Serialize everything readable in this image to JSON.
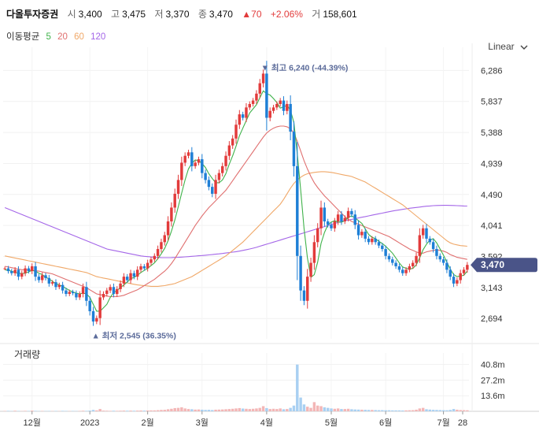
{
  "header": {
    "name": "다올투자증권",
    "open_label": "시",
    "open": "3,400",
    "high_label": "고",
    "high": "3,475",
    "low_label": "저",
    "low": "3,370",
    "close_label": "종",
    "close": "3,470",
    "change_arrow": "▲",
    "change": "70",
    "change_pct": "+2.06%",
    "volume_label": "거",
    "volume": "158,601"
  },
  "ma_legend": {
    "label": "이동평균",
    "p5": "5",
    "p20": "20",
    "p60": "60",
    "p120": "120"
  },
  "scale_button": {
    "label": "Linear",
    "icon": "chevron-down-icon"
  },
  "volume_title": "거래량",
  "colors": {
    "up": "#e23b3b",
    "down": "#1e7fd6",
    "ma5": "#3fb24a",
    "ma20": "#e07070",
    "ma60": "#f0a868",
    "ma120": "#a466e8",
    "price_tag": "#4a5488"
  },
  "chart_data": {
    "type": "candlestick",
    "price_axis": {
      "min": 2400,
      "max": 6450,
      "ticks": [
        2694,
        3143,
        3592,
        4041,
        4490,
        4939,
        5388,
        5837,
        6286
      ]
    },
    "volume_axis": {
      "ticks": [
        "13.6m",
        "27.2m",
        "40.8m"
      ]
    },
    "x_ticks": [
      "12월",
      "2023",
      "2월",
      "3월",
      "4월",
      "5월",
      "6월",
      "7월",
      "28"
    ],
    "last_price_label": "3,470",
    "high_annotation": "▼ 최고 6,240 (-44.39%)",
    "low_annotation": "▲ 최저 2,545 (36.35%)",
    "close_series": [
      3420,
      3380,
      3350,
      3400,
      3300,
      3350,
      3420,
      3380,
      3450,
      3300,
      3250,
      3320,
      3280,
      3200,
      3220,
      3150,
      3180,
      3100,
      3050,
      3080,
      3060,
      3000,
      3050,
      3150,
      2950,
      2800,
      2650,
      2700,
      3000,
      3050,
      3100,
      3150,
      3050,
      3120,
      3200,
      3300,
      3250,
      3350,
      3300,
      3400,
      3450,
      3420,
      3500,
      3550,
      3600,
      3700,
      3800,
      3900,
      4100,
      4300,
      4500,
      4700,
      4950,
      5050,
      5100,
      4900,
      4950,
      5000,
      4800,
      4700,
      4600,
      4500,
      4700,
      4800,
      4900,
      5050,
      5200,
      5300,
      5500,
      5650,
      5600,
      5750,
      5800,
      5850,
      5950,
      6100,
      6240,
      5600,
      5700,
      5750,
      5800,
      5850,
      5700,
      5800,
      5400,
      4900,
      3600,
      3100,
      2950,
      3300,
      3500,
      3800,
      4000,
      4300,
      4100,
      4050,
      4000,
      4100,
      4200,
      4100,
      4150,
      4250,
      4200,
      4050,
      3900,
      3950,
      3850,
      3800,
      3850,
      3800,
      3750,
      3700,
      3600,
      3550,
      3500,
      3450,
      3400,
      3350,
      3400,
      3450,
      3500,
      3600,
      3900,
      4000,
      3850,
      3800,
      3700,
      3600,
      3550,
      3500,
      3400,
      3300,
      3200,
      3250,
      3350,
      3400,
      3470
    ],
    "ma5": [
      3400,
      3390,
      3380,
      3360,
      3350,
      3345,
      3350,
      3370,
      3390,
      3380,
      3350,
      3330,
      3290,
      3270,
      3230,
      3200,
      3180,
      3160,
      3130,
      3100,
      3080,
      3060,
      3050,
      3060,
      3050,
      3000,
      2900,
      2800,
      2800,
      2850,
      2900,
      3000,
      3070,
      3100,
      3140,
      3180,
      3220,
      3270,
      3290,
      3320,
      3360,
      3390,
      3420,
      3460,
      3500,
      3560,
      3630,
      3710,
      3820,
      3960,
      4120,
      4310,
      4510,
      4700,
      4860,
      4940,
      4990,
      4980,
      4940,
      4880,
      4790,
      4720,
      4660,
      4660,
      4700,
      4790,
      4930,
      5050,
      5190,
      5340,
      5450,
      5560,
      5670,
      5730,
      5790,
      5890,
      5990,
      5950,
      5930,
      5880,
      5820,
      5740,
      5760,
      5780,
      5710,
      5530,
      5080,
      4560,
      4000,
      3570,
      3290,
      3330,
      3510,
      3780,
      3940,
      4050,
      4090,
      4110,
      4090,
      4090,
      4110,
      4160,
      4180,
      4150,
      4110,
      4070,
      3990,
      3910,
      3870,
      3850,
      3810,
      3780,
      3740,
      3690,
      3640,
      3570,
      3500,
      3440,
      3420,
      3410,
      3420,
      3470,
      3570,
      3690,
      3770,
      3830,
      3850,
      3790,
      3700,
      3610,
      3510,
      3410,
      3330,
      3300,
      3310,
      3320,
      3380
    ],
    "ma20": [
      3450,
      3440,
      3430,
      3420,
      3410,
      3400,
      3400,
      3395,
      3390,
      3385,
      3380,
      3370,
      3360,
      3350,
      3340,
      3320,
      3300,
      3280,
      3260,
      3240,
      3220,
      3200,
      3180,
      3160,
      3140,
      3110,
      3080,
      3050,
      3040,
      3030,
      3020,
      3010,
      3010,
      3010,
      3020,
      3030,
      3050,
      3070,
      3090,
      3110,
      3140,
      3170,
      3200,
      3230,
      3260,
      3300,
      3340,
      3380,
      3430,
      3490,
      3560,
      3640,
      3720,
      3800,
      3880,
      3960,
      4040,
      4110,
      4180,
      4240,
      4300,
      4350,
      4400,
      4450,
      4500,
      4550,
      4620,
      4690,
      4760,
      4830,
      4900,
      4970,
      5040,
      5110,
      5180,
      5250,
      5320,
      5380,
      5420,
      5450,
      5470,
      5480,
      5480,
      5470,
      5440,
      5380,
      5260,
      5120,
      4980,
      4860,
      4750,
      4660,
      4590,
      4530,
      4470,
      4420,
      4370,
      4320,
      4270,
      4220,
      4170,
      4130,
      4100,
      4080,
      4060,
      4040,
      4020,
      4000,
      3980,
      3960,
      3940,
      3920,
      3900,
      3880,
      3850,
      3820,
      3790,
      3760,
      3730,
      3700,
      3680,
      3660,
      3640,
      3640,
      3660,
      3670,
      3680,
      3690,
      3680,
      3670,
      3650,
      3620,
      3600,
      3580,
      3570,
      3560,
      3550
    ],
    "ma60": [
      3600,
      3590,
      3580,
      3570,
      3560,
      3550,
      3540,
      3530,
      3520,
      3510,
      3500,
      3490,
      3480,
      3470,
      3460,
      3450,
      3440,
      3430,
      3420,
      3410,
      3400,
      3390,
      3380,
      3370,
      3360,
      3340,
      3320,
      3300,
      3290,
      3280,
      3270,
      3260,
      3250,
      3240,
      3230,
      3220,
      3210,
      3200,
      3190,
      3180,
      3175,
      3170,
      3165,
      3160,
      3160,
      3160,
      3165,
      3170,
      3180,
      3190,
      3200,
      3220,
      3240,
      3260,
      3280,
      3300,
      3330,
      3360,
      3390,
      3420,
      3450,
      3480,
      3510,
      3540,
      3570,
      3600,
      3640,
      3680,
      3720,
      3760,
      3800,
      3850,
      3900,
      3950,
      4000,
      4050,
      4100,
      4150,
      4200,
      4250,
      4300,
      4350,
      4420,
      4500,
      4580,
      4650,
      4700,
      4740,
      4770,
      4790,
      4800,
      4810,
      4815,
      4820,
      4820,
      4815,
      4810,
      4800,
      4790,
      4780,
      4770,
      4760,
      4750,
      4730,
      4710,
      4690,
      4670,
      4640,
      4610,
      4580,
      4550,
      4520,
      4490,
      4460,
      4430,
      4400,
      4370,
      4340,
      4300,
      4260,
      4220,
      4180,
      4140,
      4100,
      4060,
      4020,
      3980,
      3940,
      3900,
      3860,
      3820,
      3790,
      3770,
      3760,
      3750,
      3745,
      3740
    ],
    "ma120": [
      4300,
      4280,
      4260,
      4240,
      4220,
      4200,
      4180,
      4160,
      4140,
      4120,
      4100,
      4080,
      4060,
      4040,
      4020,
      4000,
      3980,
      3960,
      3940,
      3920,
      3900,
      3880,
      3860,
      3840,
      3820,
      3800,
      3780,
      3760,
      3740,
      3720,
      3700,
      3690,
      3680,
      3670,
      3660,
      3650,
      3640,
      3630,
      3620,
      3610,
      3600,
      3595,
      3590,
      3585,
      3580,
      3578,
      3576,
      3575,
      3575,
      3576,
      3578,
      3580,
      3583,
      3586,
      3590,
      3594,
      3598,
      3602,
      3606,
      3610,
      3615,
      3620,
      3625,
      3630,
      3636,
      3642,
      3648,
      3655,
      3662,
      3670,
      3680,
      3690,
      3700,
      3712,
      3725,
      3740,
      3755,
      3770,
      3785,
      3800,
      3815,
      3830,
      3845,
      3860,
      3875,
      3890,
      3905,
      3920,
      3935,
      3950,
      3965,
      3980,
      3995,
      4010,
      4025,
      4040,
      4055,
      4070,
      4085,
      4100,
      4110,
      4120,
      4130,
      4140,
      4150,
      4160,
      4170,
      4180,
      4190,
      4200,
      4210,
      4220,
      4230,
      4240,
      4250,
      4258,
      4266,
      4274,
      4282,
      4290,
      4296,
      4302,
      4308,
      4314,
      4320,
      4324,
      4328,
      4330,
      4332,
      4333,
      4333,
      4332,
      4330,
      4328,
      4326,
      4324,
      4322
    ],
    "volume": [
      0.3,
      0.4,
      0.2,
      0.5,
      0.3,
      0.2,
      0.4,
      0.3,
      0.6,
      0.4,
      0.2,
      0.3,
      0.2,
      0.3,
      0.2,
      0.3,
      0.2,
      0.4,
      0.3,
      0.2,
      0.3,
      0.2,
      0.3,
      0.5,
      0.4,
      0.6,
      1.2,
      0.8,
      2.0,
      0.6,
      0.5,
      0.4,
      0.5,
      0.4,
      0.5,
      0.6,
      0.5,
      0.6,
      0.5,
      0.6,
      0.7,
      0.6,
      0.7,
      0.8,
      0.8,
      1.0,
      1.2,
      1.3,
      1.8,
      2.2,
      2.8,
      3.0,
      3.5,
      2.5,
      2.0,
      1.8,
      1.5,
      1.6,
      1.4,
      1.2,
      1.3,
      1.1,
      1.4,
      1.5,
      1.6,
      1.8,
      2.0,
      2.2,
      2.5,
      2.8,
      2.4,
      2.2,
      2.0,
      2.2,
      2.5,
      3.0,
      4.5,
      2.8,
      2.0,
      2.2,
      2.0,
      2.5,
      1.8,
      2.0,
      3.0,
      5.0,
      40.8,
      12.0,
      6.0,
      4.0,
      3.0,
      8.0,
      5.0,
      4.5,
      3.5,
      3.0,
      2.5,
      2.2,
      2.5,
      2.0,
      2.0,
      2.2,
      1.8,
      1.6,
      1.5,
      1.4,
      1.3,
      1.2,
      1.2,
      1.1,
      1.0,
      1.0,
      0.9,
      0.9,
      0.8,
      0.8,
      0.8,
      0.7,
      0.8,
      0.9,
      1.0,
      1.4,
      2.5,
      3.0,
      1.8,
      1.5,
      1.3,
      1.2,
      1.1,
      1.0,
      0.9,
      1.2,
      2.0,
      1.4,
      1.1,
      1.0,
      0.9
    ]
  }
}
